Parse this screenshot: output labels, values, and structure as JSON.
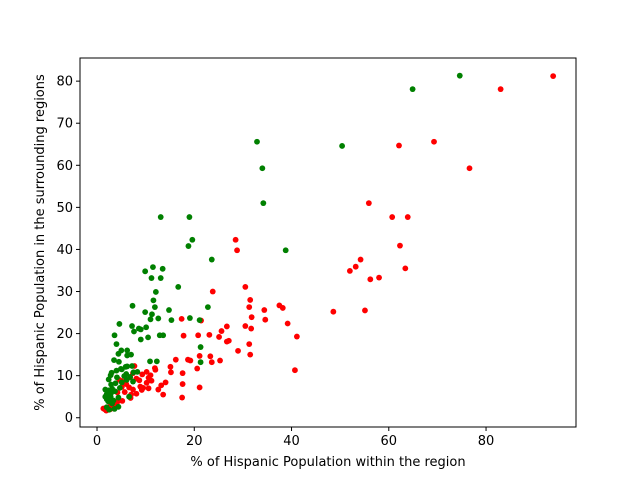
{
  "chart_data": {
    "type": "scatter",
    "xlabel": "% of Hispanic Population within the region",
    "ylabel": "% of Hispanic Population in the surrounding regions",
    "xlim": [
      -3.5,
      98.5
    ],
    "ylim": [
      -2.2,
      85.5
    ],
    "xticks": [
      0,
      20,
      40,
      60,
      80
    ],
    "yticks": [
      0,
      10,
      20,
      30,
      40,
      50,
      60,
      70,
      80
    ],
    "grid": false,
    "legend": "none",
    "series": [
      {
        "color": "#ff0000",
        "points": [
          [
            93.8,
            81.2
          ],
          [
            83.0,
            78.1
          ],
          [
            69.3,
            65.6
          ],
          [
            62.1,
            64.7
          ],
          [
            76.6,
            59.3
          ],
          [
            55.9,
            51.0
          ],
          [
            60.7,
            47.7
          ],
          [
            63.9,
            47.7
          ],
          [
            28.5,
            42.3
          ],
          [
            62.3,
            40.9
          ],
          [
            28.8,
            39.8
          ],
          [
            54.2,
            37.6
          ],
          [
            53.2,
            35.9
          ],
          [
            52.0,
            34.9
          ],
          [
            63.4,
            35.5
          ],
          [
            56.2,
            32.9
          ],
          [
            58.0,
            33.3
          ],
          [
            30.5,
            31.1
          ],
          [
            23.8,
            30.0
          ],
          [
            31.5,
            28.0
          ],
          [
            37.5,
            26.7
          ],
          [
            31.3,
            26.3
          ],
          [
            34.4,
            25.6
          ],
          [
            38.2,
            26.1
          ],
          [
            48.6,
            25.2
          ],
          [
            55.1,
            25.5
          ],
          [
            31.8,
            23.9
          ],
          [
            34.6,
            23.3
          ],
          [
            21.4,
            23.1
          ],
          [
            17.4,
            23.5
          ],
          [
            39.2,
            22.4
          ],
          [
            30.5,
            21.8
          ],
          [
            31.7,
            21.2
          ],
          [
            26.7,
            21.7
          ],
          [
            25.6,
            20.6
          ],
          [
            41.1,
            19.3
          ],
          [
            17.8,
            19.5
          ],
          [
            20.8,
            19.6
          ],
          [
            23.1,
            19.7
          ],
          [
            25.1,
            19.2
          ],
          [
            27.1,
            18.3
          ],
          [
            26.7,
            18.1
          ],
          [
            31.3,
            17.5
          ],
          [
            29.0,
            15.9
          ],
          [
            31.5,
            15.0
          ],
          [
            21.1,
            14.7
          ],
          [
            23.3,
            14.6
          ],
          [
            18.7,
            13.8
          ],
          [
            16.2,
            13.8
          ],
          [
            19.2,
            13.6
          ],
          [
            25.3,
            13.6
          ],
          [
            23.6,
            13.2
          ],
          [
            15.1,
            12.1
          ],
          [
            20.6,
            11.7
          ],
          [
            15.2,
            10.8
          ],
          [
            17.6,
            10.6
          ],
          [
            40.7,
            11.3
          ],
          [
            12.0,
            11.4
          ],
          [
            10.2,
            10.9
          ],
          [
            7.4,
            10.6
          ],
          [
            9.3,
            10.3
          ],
          [
            10.6,
            9.5
          ],
          [
            11.0,
            10.1
          ],
          [
            8.1,
            9.3
          ],
          [
            6.8,
            9.6
          ],
          [
            4.6,
            9.0
          ],
          [
            5.1,
            8.7
          ],
          [
            8.7,
            8.9
          ],
          [
            10.2,
            8.3
          ],
          [
            11.2,
            8.8
          ],
          [
            14.1,
            8.4
          ],
          [
            13.2,
            7.7
          ],
          [
            17.6,
            8.0
          ],
          [
            5.1,
            7.3
          ],
          [
            6.6,
            7.2
          ],
          [
            8.9,
            7.4
          ],
          [
            9.5,
            7.1
          ],
          [
            10.6,
            7.0
          ],
          [
            21.1,
            7.2
          ],
          [
            7.4,
            6.7
          ],
          [
            9.2,
            6.6
          ],
          [
            12.6,
            6.7
          ],
          [
            4.2,
            6.0
          ],
          [
            5.7,
            6.1
          ],
          [
            8.1,
            5.7
          ],
          [
            7.0,
            5.5
          ],
          [
            13.6,
            5.5
          ],
          [
            17.5,
            4.8
          ],
          [
            6.9,
            4.7
          ],
          [
            3.0,
            4.2
          ],
          [
            4.3,
            3.9
          ],
          [
            5.2,
            4.0
          ],
          [
            3.6,
            3.3
          ],
          [
            4.0,
            2.9
          ],
          [
            2.5,
            2.6
          ],
          [
            2.0,
            2.5
          ],
          [
            1.3,
            2.2
          ],
          [
            1.6,
            2.0
          ],
          [
            2.2,
            1.9
          ],
          [
            2.7,
            2.0
          ],
          [
            1.9,
            1.7
          ],
          [
            3.0,
            2.4
          ],
          [
            11.9,
            11.8
          ],
          [
            6.0,
            8.0
          ],
          [
            7.7,
            12.3
          ]
        ]
      },
      {
        "color": "#008000",
        "points": [
          [
            74.6,
            81.3
          ],
          [
            64.9,
            78.1
          ],
          [
            32.9,
            65.6
          ],
          [
            50.4,
            64.6
          ],
          [
            34.0,
            59.3
          ],
          [
            34.2,
            51.0
          ],
          [
            13.1,
            47.7
          ],
          [
            19.0,
            47.7
          ],
          [
            19.6,
            42.3
          ],
          [
            18.8,
            40.8
          ],
          [
            38.8,
            39.8
          ],
          [
            23.6,
            37.6
          ],
          [
            11.5,
            35.8
          ],
          [
            13.5,
            35.4
          ],
          [
            9.9,
            34.8
          ],
          [
            11.2,
            33.2
          ],
          [
            13.1,
            33.2
          ],
          [
            16.7,
            31.1
          ],
          [
            12.1,
            29.9
          ],
          [
            11.6,
            27.9
          ],
          [
            7.3,
            26.6
          ],
          [
            11.9,
            26.3
          ],
          [
            14.8,
            25.6
          ],
          [
            9.9,
            25.1
          ],
          [
            11.3,
            24.6
          ],
          [
            12.6,
            23.6
          ],
          [
            11.0,
            23.4
          ],
          [
            19.1,
            23.7
          ],
          [
            21.1,
            23.2
          ],
          [
            15.3,
            23.2
          ],
          [
            4.6,
            22.3
          ],
          [
            7.2,
            21.8
          ],
          [
            10.1,
            21.5
          ],
          [
            9.0,
            21.0
          ],
          [
            7.6,
            20.5
          ],
          [
            3.6,
            19.6
          ],
          [
            10.5,
            19.1
          ],
          [
            12.9,
            19.6
          ],
          [
            13.6,
            19.6
          ],
          [
            9.0,
            18.6
          ],
          [
            4.0,
            17.5
          ],
          [
            21.3,
            16.8
          ],
          [
            5.0,
            16.0
          ],
          [
            6.2,
            16.0
          ],
          [
            4.4,
            15.2
          ],
          [
            7.0,
            15.0
          ],
          [
            6.2,
            14.8
          ],
          [
            3.5,
            13.7
          ],
          [
            4.5,
            13.3
          ],
          [
            10.9,
            13.4
          ],
          [
            12.3,
            13.4
          ],
          [
            21.3,
            13.2
          ],
          [
            6.2,
            12.2
          ],
          [
            7.2,
            12.3
          ],
          [
            5.1,
            11.5
          ],
          [
            4.0,
            11.2
          ],
          [
            3.0,
            10.7
          ],
          [
            6.0,
            10.4
          ],
          [
            7.5,
            10.8
          ],
          [
            8.3,
            10.9
          ],
          [
            2.8,
            10.1
          ],
          [
            5.6,
            9.9
          ],
          [
            6.8,
            9.7
          ],
          [
            2.4,
            9.1
          ],
          [
            4.1,
            9.6
          ],
          [
            6.1,
            9.0
          ],
          [
            7.4,
            8.6
          ],
          [
            3.8,
            8.2
          ],
          [
            5.1,
            8.4
          ],
          [
            2.9,
            7.9
          ],
          [
            1.7,
            6.7
          ],
          [
            3.1,
            6.9
          ],
          [
            4.7,
            7.1
          ],
          [
            2.4,
            6.5
          ],
          [
            3.7,
            6.3
          ],
          [
            2.0,
            5.6
          ],
          [
            2.9,
            5.9
          ],
          [
            1.7,
            5.0
          ],
          [
            2.8,
            5.0
          ],
          [
            4.4,
            4.8
          ],
          [
            6.6,
            5.0
          ],
          [
            2.0,
            4.4
          ],
          [
            3.4,
            4.1
          ],
          [
            2.3,
            3.9
          ],
          [
            3.1,
            3.4
          ],
          [
            2.0,
            2.5
          ],
          [
            3.6,
            2.1
          ],
          [
            4.4,
            2.6
          ],
          [
            2.5,
            1.9
          ],
          [
            22.8,
            26.3
          ],
          [
            8.6,
            21.2
          ],
          [
            4.9,
            11.6
          ],
          [
            5.9,
            12.1
          ]
        ]
      }
    ]
  }
}
